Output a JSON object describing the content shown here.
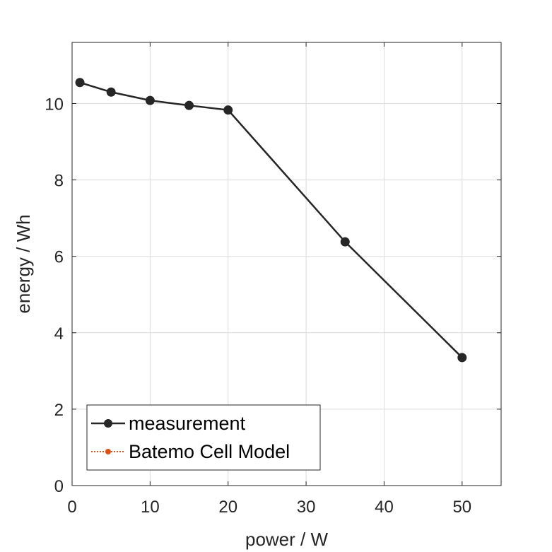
{
  "chart_data": {
    "type": "line",
    "xlabel": "power / W",
    "ylabel": "energy / Wh",
    "xlim": [
      0,
      55
    ],
    "ylim": [
      0,
      11.6
    ],
    "xticks": [
      0,
      10,
      20,
      30,
      40,
      50
    ],
    "yticks": [
      0,
      2,
      4,
      6,
      8,
      10
    ],
    "grid": true,
    "legend_position": "bottom-left",
    "series": [
      {
        "name": "measurement",
        "color": "#262626",
        "line_style": "solid",
        "marker": "circle",
        "x": [
          1,
          5,
          10,
          15,
          20,
          35,
          50
        ],
        "y": [
          10.55,
          10.3,
          10.08,
          9.95,
          9.83,
          6.38,
          3.35
        ]
      },
      {
        "name": "Batemo Cell Model",
        "color": "#d95319",
        "line_style": "dotted",
        "marker": "circle",
        "x": [],
        "y": []
      }
    ]
  }
}
